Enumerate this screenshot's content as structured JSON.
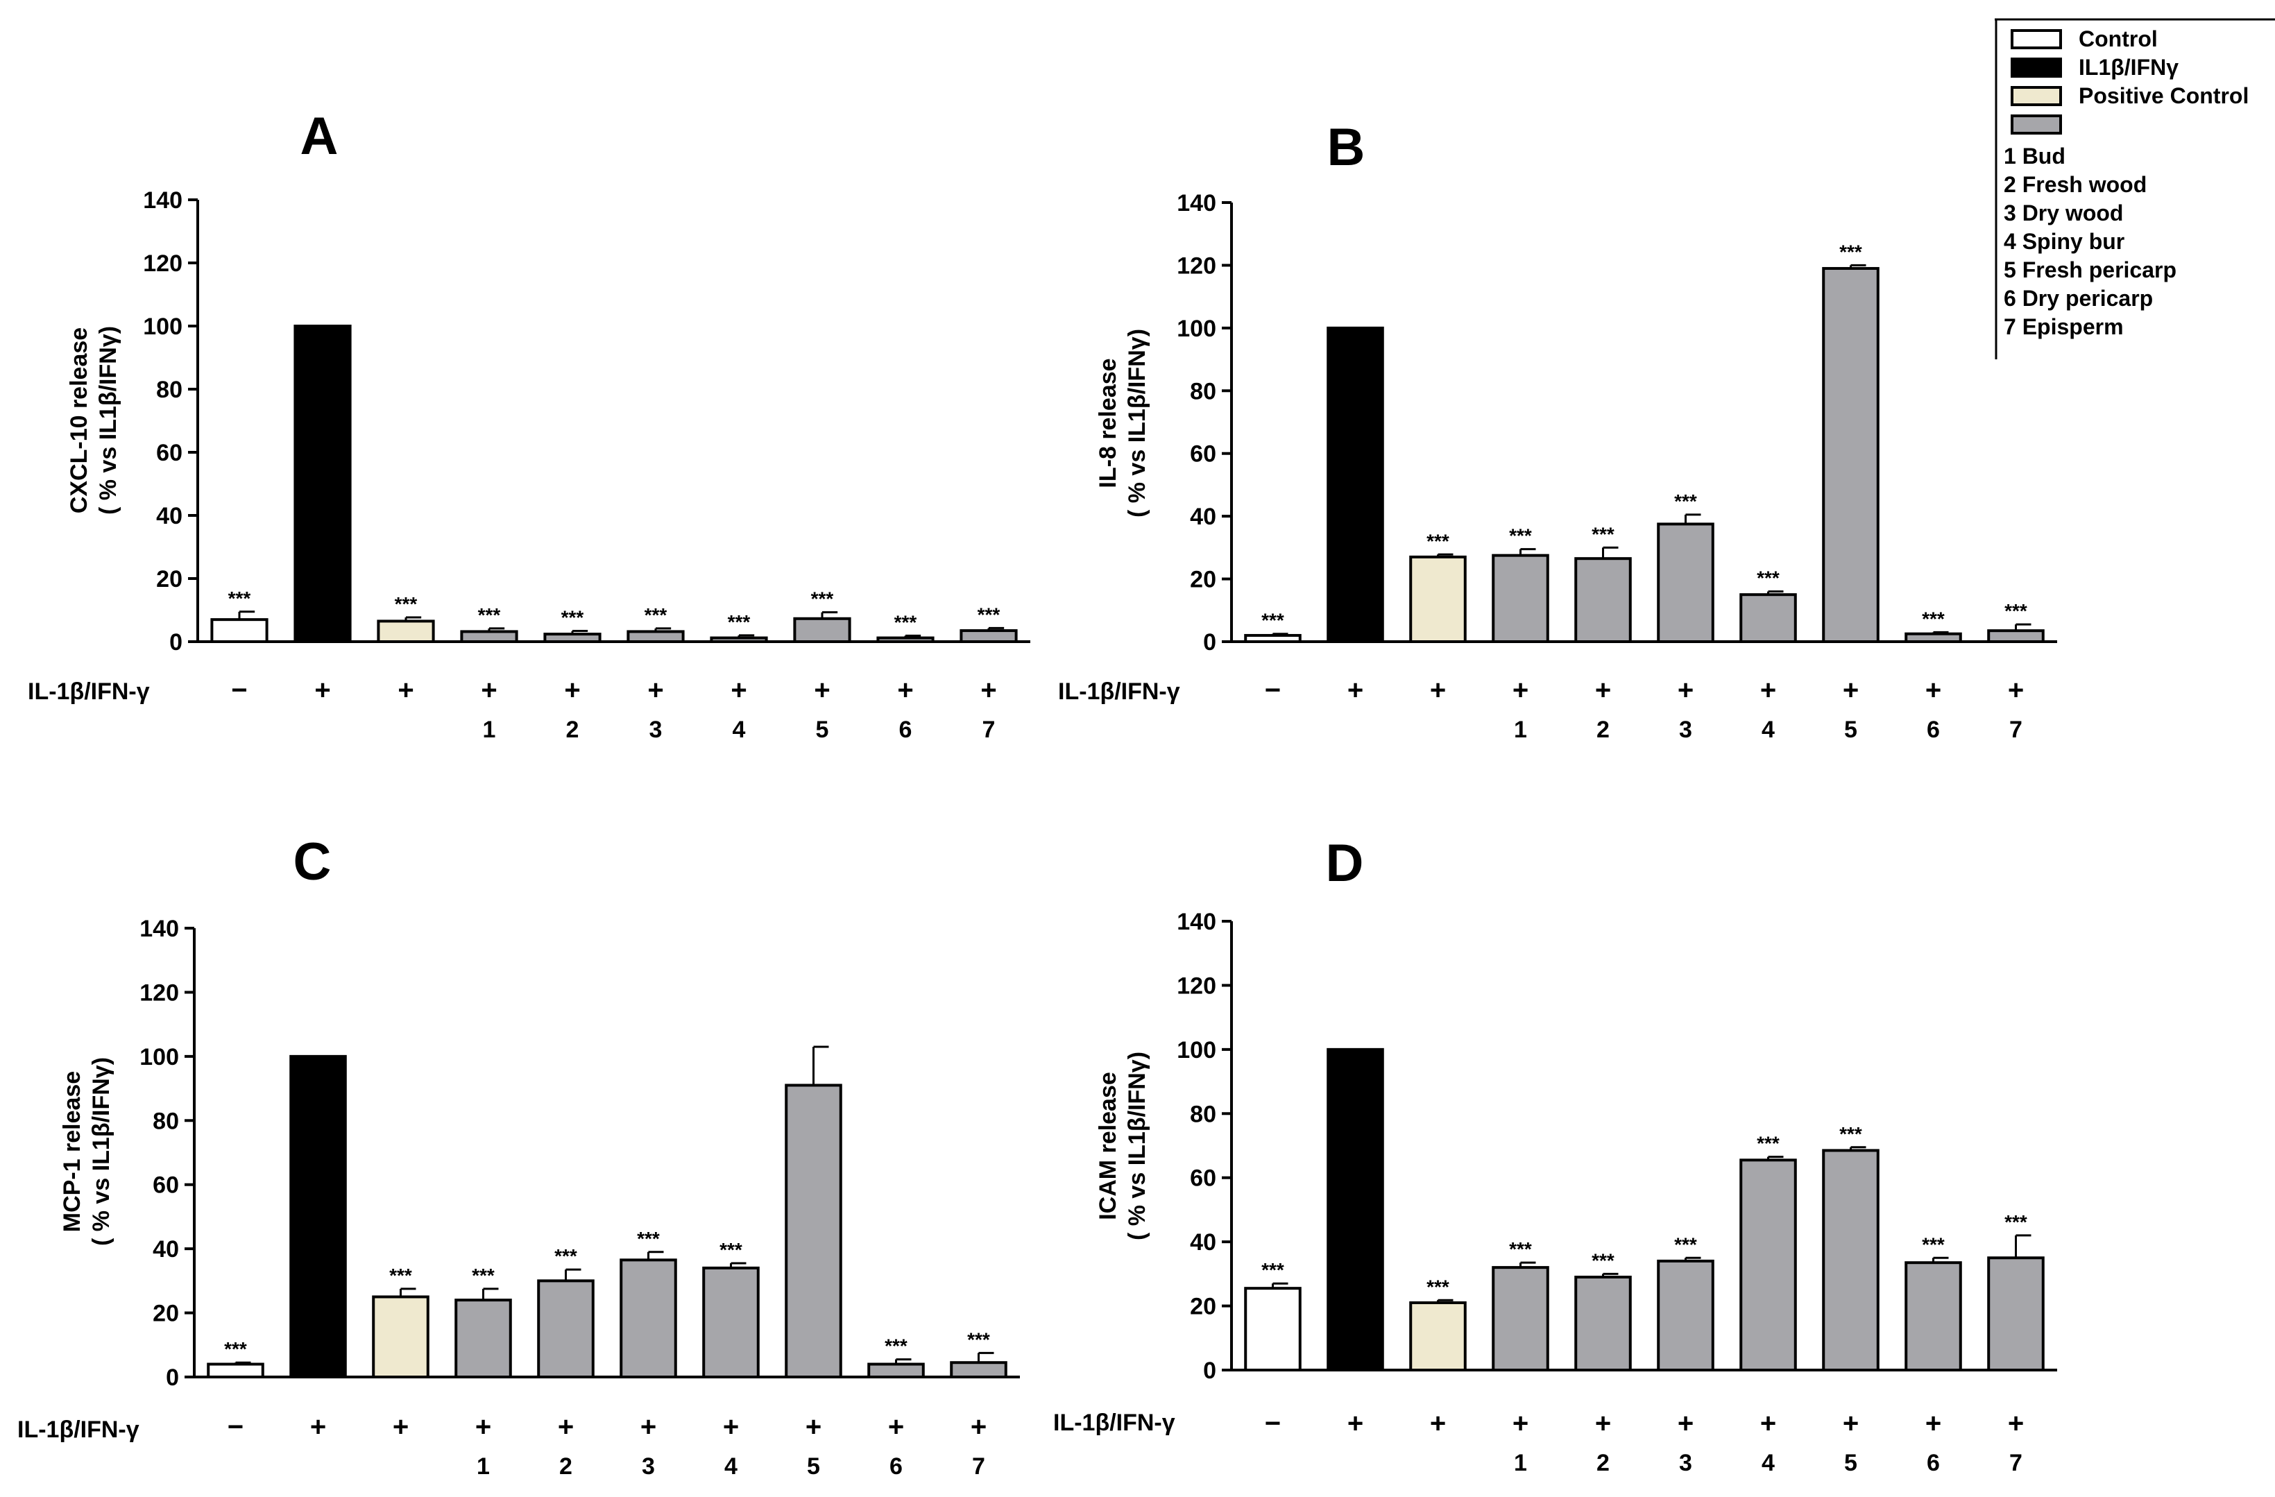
{
  "legend": {
    "items": [
      {
        "label": "Control",
        "color": "#ffffff"
      },
      {
        "label": "IL1β/IFNγ",
        "color": "#000000"
      },
      {
        "label": "Positive Control",
        "color": "#efe9cf"
      },
      {
        "label": "",
        "color": "#a6a6aa"
      }
    ],
    "samples": [
      "1 Bud",
      "2 Fresh wood",
      "3 Dry wood",
      "4 Spiny bur",
      "5 Fresh pericarp",
      "6 Dry pericarp",
      "7 Episperm"
    ]
  },
  "condition_label": "IL-1β/IFN-γ",
  "treatment_signs": [
    "−",
    "+",
    "+",
    "+",
    "+",
    "+",
    "+",
    "+",
    "+",
    "+"
  ],
  "sample_numbers": [
    "",
    "",
    "",
    "1",
    "2",
    "3",
    "4",
    "5",
    "6",
    "7"
  ],
  "bar_colors": [
    "#ffffff",
    "#000000",
    "#efe9cf",
    "#a6a6aa",
    "#a6a6aa",
    "#a6a6aa",
    "#a6a6aa",
    "#a6a6aa",
    "#a6a6aa",
    "#a6a6aa"
  ],
  "chart_data": [
    {
      "type": "bar",
      "panel": "A",
      "title": "A",
      "ylabel": [
        "CXCL-10 release",
        "( % vs IL1β/IFNγ)"
      ],
      "ylim": [
        0,
        140
      ],
      "yticks": [
        "0",
        "20",
        "40",
        "60",
        "80",
        "100",
        "120",
        "140"
      ],
      "categories": [
        "Control",
        "IL1β/IFNγ",
        "Positive Control",
        "1 Bud",
        "2 Fresh wood",
        "3 Dry wood",
        "4 Spiny bur",
        "5 Fresh pericarp",
        "6 Dry pericarp",
        "7 Episperm"
      ],
      "values": [
        7,
        100,
        6.5,
        3.2,
        2.4,
        3.2,
        1.2,
        7.3,
        1.2,
        3.5
      ],
      "errors": [
        2.5,
        0,
        1.2,
        1,
        1,
        1,
        0.8,
        2,
        0.7,
        0.8
      ],
      "significance": [
        "***",
        "",
        "***",
        "***",
        "***",
        "***",
        "***",
        "***",
        "***",
        "***"
      ]
    },
    {
      "type": "bar",
      "panel": "B",
      "title": "B",
      "ylabel": [
        "IL-8 release",
        "( % vs IL1β/IFNγ)"
      ],
      "ylim": [
        0,
        140
      ],
      "yticks": [
        "0",
        "20",
        "40",
        "60",
        "80",
        "100",
        "120",
        "140"
      ],
      "categories": [
        "Control",
        "IL1β/IFNγ",
        "Positive Control",
        "1 Bud",
        "2 Fresh wood",
        "3 Dry wood",
        "4 Spiny bur",
        "5 Fresh pericarp",
        "6 Dry pericarp",
        "7 Episperm"
      ],
      "values": [
        2,
        100,
        27,
        27.5,
        26.5,
        37.5,
        15,
        119,
        2.5,
        3.5
      ],
      "errors": [
        0.5,
        0,
        0.8,
        2,
        3.5,
        3,
        1,
        1,
        0.5,
        2
      ],
      "significance": [
        "***",
        "",
        "***",
        "***",
        "***",
        "***",
        "***",
        "***",
        "***",
        "***"
      ]
    },
    {
      "type": "bar",
      "panel": "C",
      "title": "C",
      "ylabel": [
        "MCP-1 release",
        "( % vs IL1β/IFNγ)"
      ],
      "ylim": [
        0,
        140
      ],
      "yticks": [
        "0",
        "20",
        "40",
        "60",
        "80",
        "100",
        "120",
        "140"
      ],
      "categories": [
        "Control",
        "IL1β/IFNγ",
        "Positive Control",
        "1 Bud",
        "2 Fresh wood",
        "3 Dry wood",
        "4 Spiny bur",
        "5 Fresh pericarp",
        "6 Dry pericarp",
        "7 Episperm"
      ],
      "values": [
        4,
        100,
        25,
        24,
        30,
        36.5,
        34,
        91,
        4,
        4.5
      ],
      "errors": [
        0.5,
        0,
        2.5,
        3.5,
        3.5,
        2.5,
        1.5,
        12,
        1.5,
        3
      ],
      "significance": [
        "***",
        "",
        "***",
        "***",
        "***",
        "***",
        "***",
        "",
        "***",
        "***"
      ]
    },
    {
      "type": "bar",
      "panel": "D",
      "title": "D",
      "ylabel": [
        "ICAM release",
        "( % vs IL1β/IFNγ)"
      ],
      "ylim": [
        0,
        140
      ],
      "yticks": [
        "0",
        "20",
        "40",
        "60",
        "80",
        "100",
        "120",
        "140"
      ],
      "categories": [
        "Control",
        "IL1β/IFNγ",
        "Positive Control",
        "1 Bud",
        "2 Fresh wood",
        "3 Dry wood",
        "4 Spiny bur",
        "5 Fresh pericarp",
        "6 Dry pericarp",
        "7 Episperm"
      ],
      "values": [
        25.5,
        100,
        21,
        32,
        29,
        34,
        65.5,
        68.5,
        33.5,
        35
      ],
      "errors": [
        1.5,
        0,
        0.8,
        1.5,
        1,
        1,
        1,
        1,
        1.5,
        7
      ],
      "significance": [
        "***",
        "",
        "***",
        "***",
        "***",
        "***",
        "***",
        "***",
        "***",
        "***"
      ]
    }
  ]
}
